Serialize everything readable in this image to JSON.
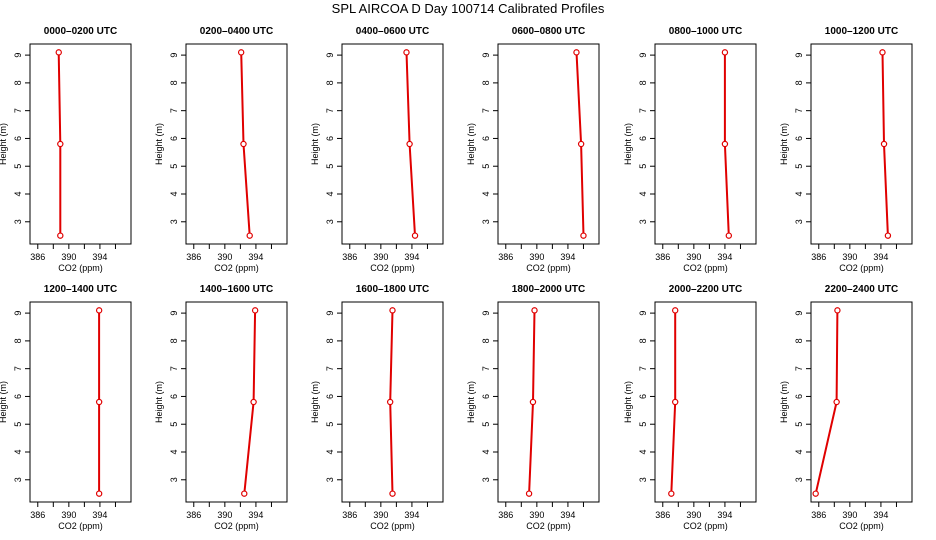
{
  "title": "SPL AIRCOA D  Day 100714  Calibrated Profiles",
  "chart_data": {
    "type": "line",
    "xlabel": "CO2 (ppm)",
    "ylabel": "Height (m)",
    "xlim": [
      385,
      398
    ],
    "ylim": [
      2.2,
      9.4
    ],
    "xticks": [
      386,
      390,
      394
    ],
    "xtick_minor": [
      388,
      392,
      396
    ],
    "yticks": [
      3,
      4,
      5,
      6,
      7,
      8,
      9
    ],
    "heights": [
      9.1,
      5.8,
      2.5
    ],
    "line_color": "#e00000",
    "panels": [
      {
        "title": "0000–0200 UTC",
        "co2": [
          388.7,
          388.9,
          388.9
        ]
      },
      {
        "title": "0200–0400 UTC",
        "co2": [
          392.1,
          392.4,
          393.2
        ]
      },
      {
        "title": "0400–0600 UTC",
        "co2": [
          393.3,
          393.7,
          394.4
        ]
      },
      {
        "title": "0600–0800 UTC",
        "co2": [
          395.1,
          395.7,
          396.0
        ]
      },
      {
        "title": "0800–1000 UTC",
        "co2": [
          394.0,
          394.0,
          394.5
        ]
      },
      {
        "title": "1000–1200 UTC",
        "co2": [
          394.2,
          394.4,
          394.9
        ]
      },
      {
        "title": "1200–1400 UTC",
        "co2": [
          393.9,
          393.9,
          393.9
        ]
      },
      {
        "title": "1400–1600 UTC",
        "co2": [
          393.9,
          393.7,
          392.5
        ]
      },
      {
        "title": "1600–1800 UTC",
        "co2": [
          391.5,
          391.2,
          391.5
        ]
      },
      {
        "title": "1800–2000 UTC",
        "co2": [
          389.7,
          389.5,
          389.0
        ]
      },
      {
        "title": "2000–2200 UTC",
        "co2": [
          387.6,
          387.6,
          387.1
        ]
      },
      {
        "title": "2200–2400 UTC",
        "co2": [
          388.4,
          388.3,
          385.6
        ]
      }
    ]
  }
}
